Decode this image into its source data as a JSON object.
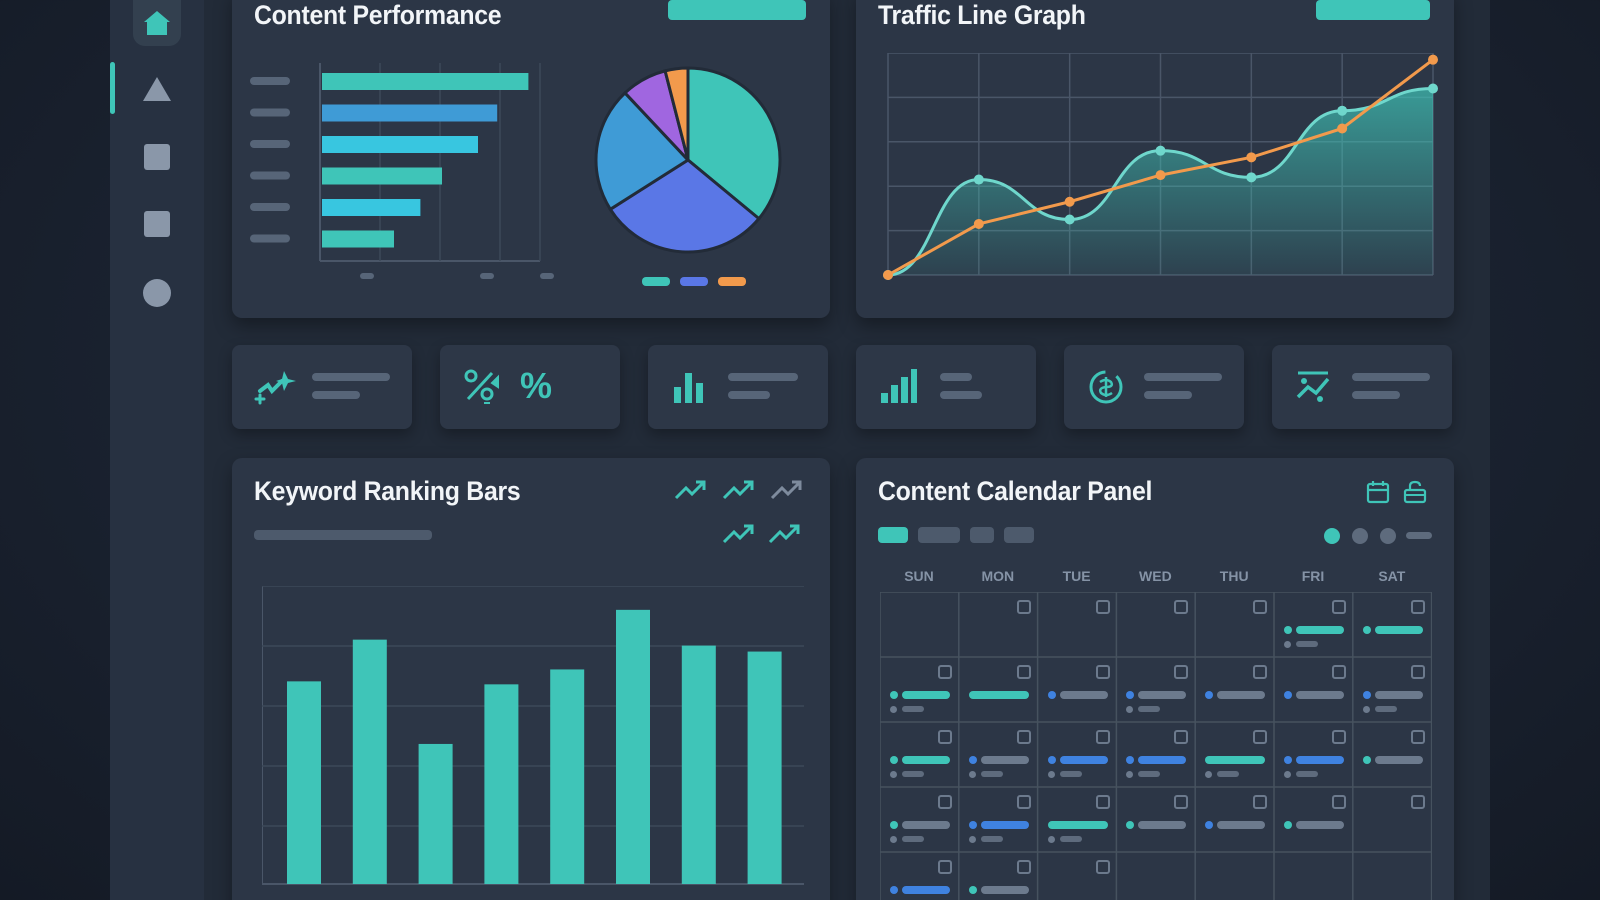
{
  "colors": {
    "teal": "#3fc5b8",
    "blue": "#3f9bd6",
    "indigo": "#5a77e6",
    "purple": "#a066e0",
    "orange": "#f29a4c",
    "cyan": "#38c6e0",
    "grey": "#576578"
  },
  "sidebar": {
    "icons": [
      "home-icon",
      "triangle-icon",
      "square-icon",
      "square-icon",
      "circle-icon"
    ]
  },
  "content_performance": {
    "title": "Content Performance",
    "bar_values": [
      0.86,
      0.73,
      0.65,
      0.5,
      0.41,
      0.3
    ],
    "pie_slices": [
      0.36,
      0.3,
      0.22,
      0.08,
      0.04
    ]
  },
  "traffic": {
    "title": "Traffic Line Graph",
    "series_teal": [
      0.0,
      0.43,
      0.25,
      0.56,
      0.44,
      0.74,
      0.84
    ],
    "series_orange": [
      0.0,
      0.23,
      0.33,
      0.45,
      0.53,
      0.66,
      0.97
    ]
  },
  "stat_cards": {
    "percent_symbol": "%",
    "icons": [
      "sparkle-plus-icon",
      "percent-exchange-icon",
      "bar-chart-icon",
      "signal-bars-icon",
      "currency-refresh-icon",
      "discount-trend-icon"
    ]
  },
  "keyword_ranking": {
    "title": "Keyword Ranking Bars",
    "bar_values": [
      0.68,
      0.82,
      0.47,
      0.67,
      0.72,
      0.92,
      0.8,
      0.78
    ],
    "trend_icons": 5
  },
  "calendar": {
    "title": "Content Calendar Panel",
    "days": [
      "SUN",
      "MON",
      "TUE",
      "WED",
      "THU",
      "FRI",
      "SAT"
    ]
  }
}
